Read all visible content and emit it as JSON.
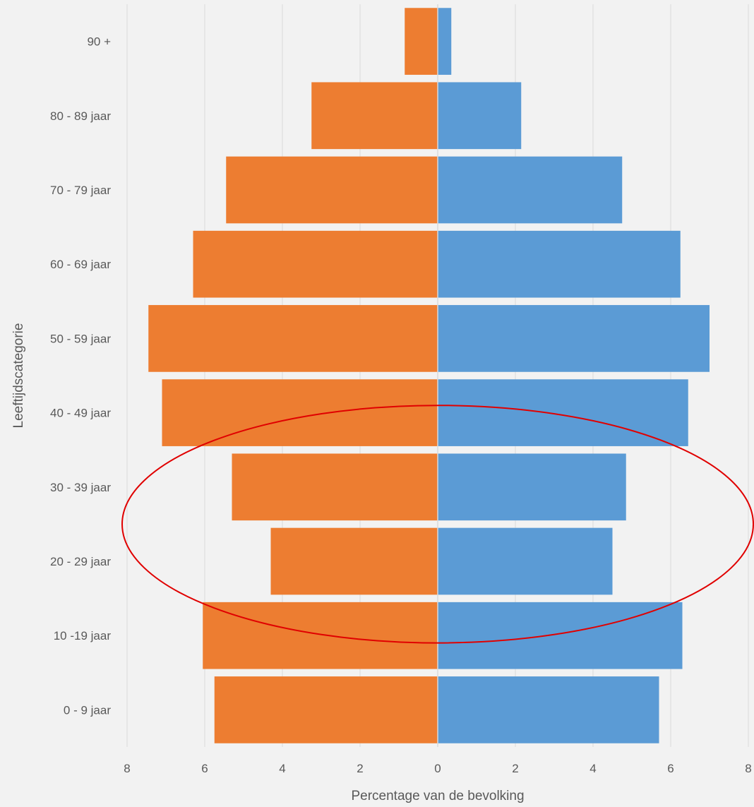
{
  "chart_data": {
    "type": "bar",
    "orientation": "horizontal",
    "variant": "population-pyramid",
    "title": "",
    "xlabel": "Percentage van de bevolking",
    "ylabel": "Leeftijdscategorie",
    "categories": [
      "0 - 9 jaar",
      "10 -19 jaar",
      "20 - 29 jaar",
      "30 - 39 jaar",
      "40 - 49 jaar",
      "50 - 59 jaar",
      "60 - 69 jaar",
      "70 - 79 jaar",
      "80 - 89 jaar",
      "90 +"
    ],
    "series": [
      {
        "values": [
          5.75,
          6.05,
          4.3,
          5.3,
          7.1,
          7.45,
          6.3,
          5.45,
          3.25,
          0.85
        ],
        "color": "#ed7d31",
        "side": "left"
      },
      {
        "values": [
          5.7,
          6.3,
          4.5,
          4.85,
          6.45,
          7.0,
          6.25,
          4.75,
          2.15,
          0.35
        ],
        "color": "#5b9bd5",
        "side": "right"
      }
    ],
    "xlim": [
      -8,
      8
    ],
    "xticks": [
      -8,
      -6,
      -4,
      -2,
      0,
      2,
      4,
      6,
      8
    ],
    "xtick_labels": [
      "8",
      "6",
      "4",
      "2",
      "0",
      "2",
      "4",
      "6",
      "8"
    ],
    "grid": true,
    "legend": "none",
    "annotation": {
      "shape": "ellipse",
      "color": "#e00000",
      "encloses": [
        "20 - 29 jaar",
        "30 - 39 jaar"
      ]
    }
  }
}
